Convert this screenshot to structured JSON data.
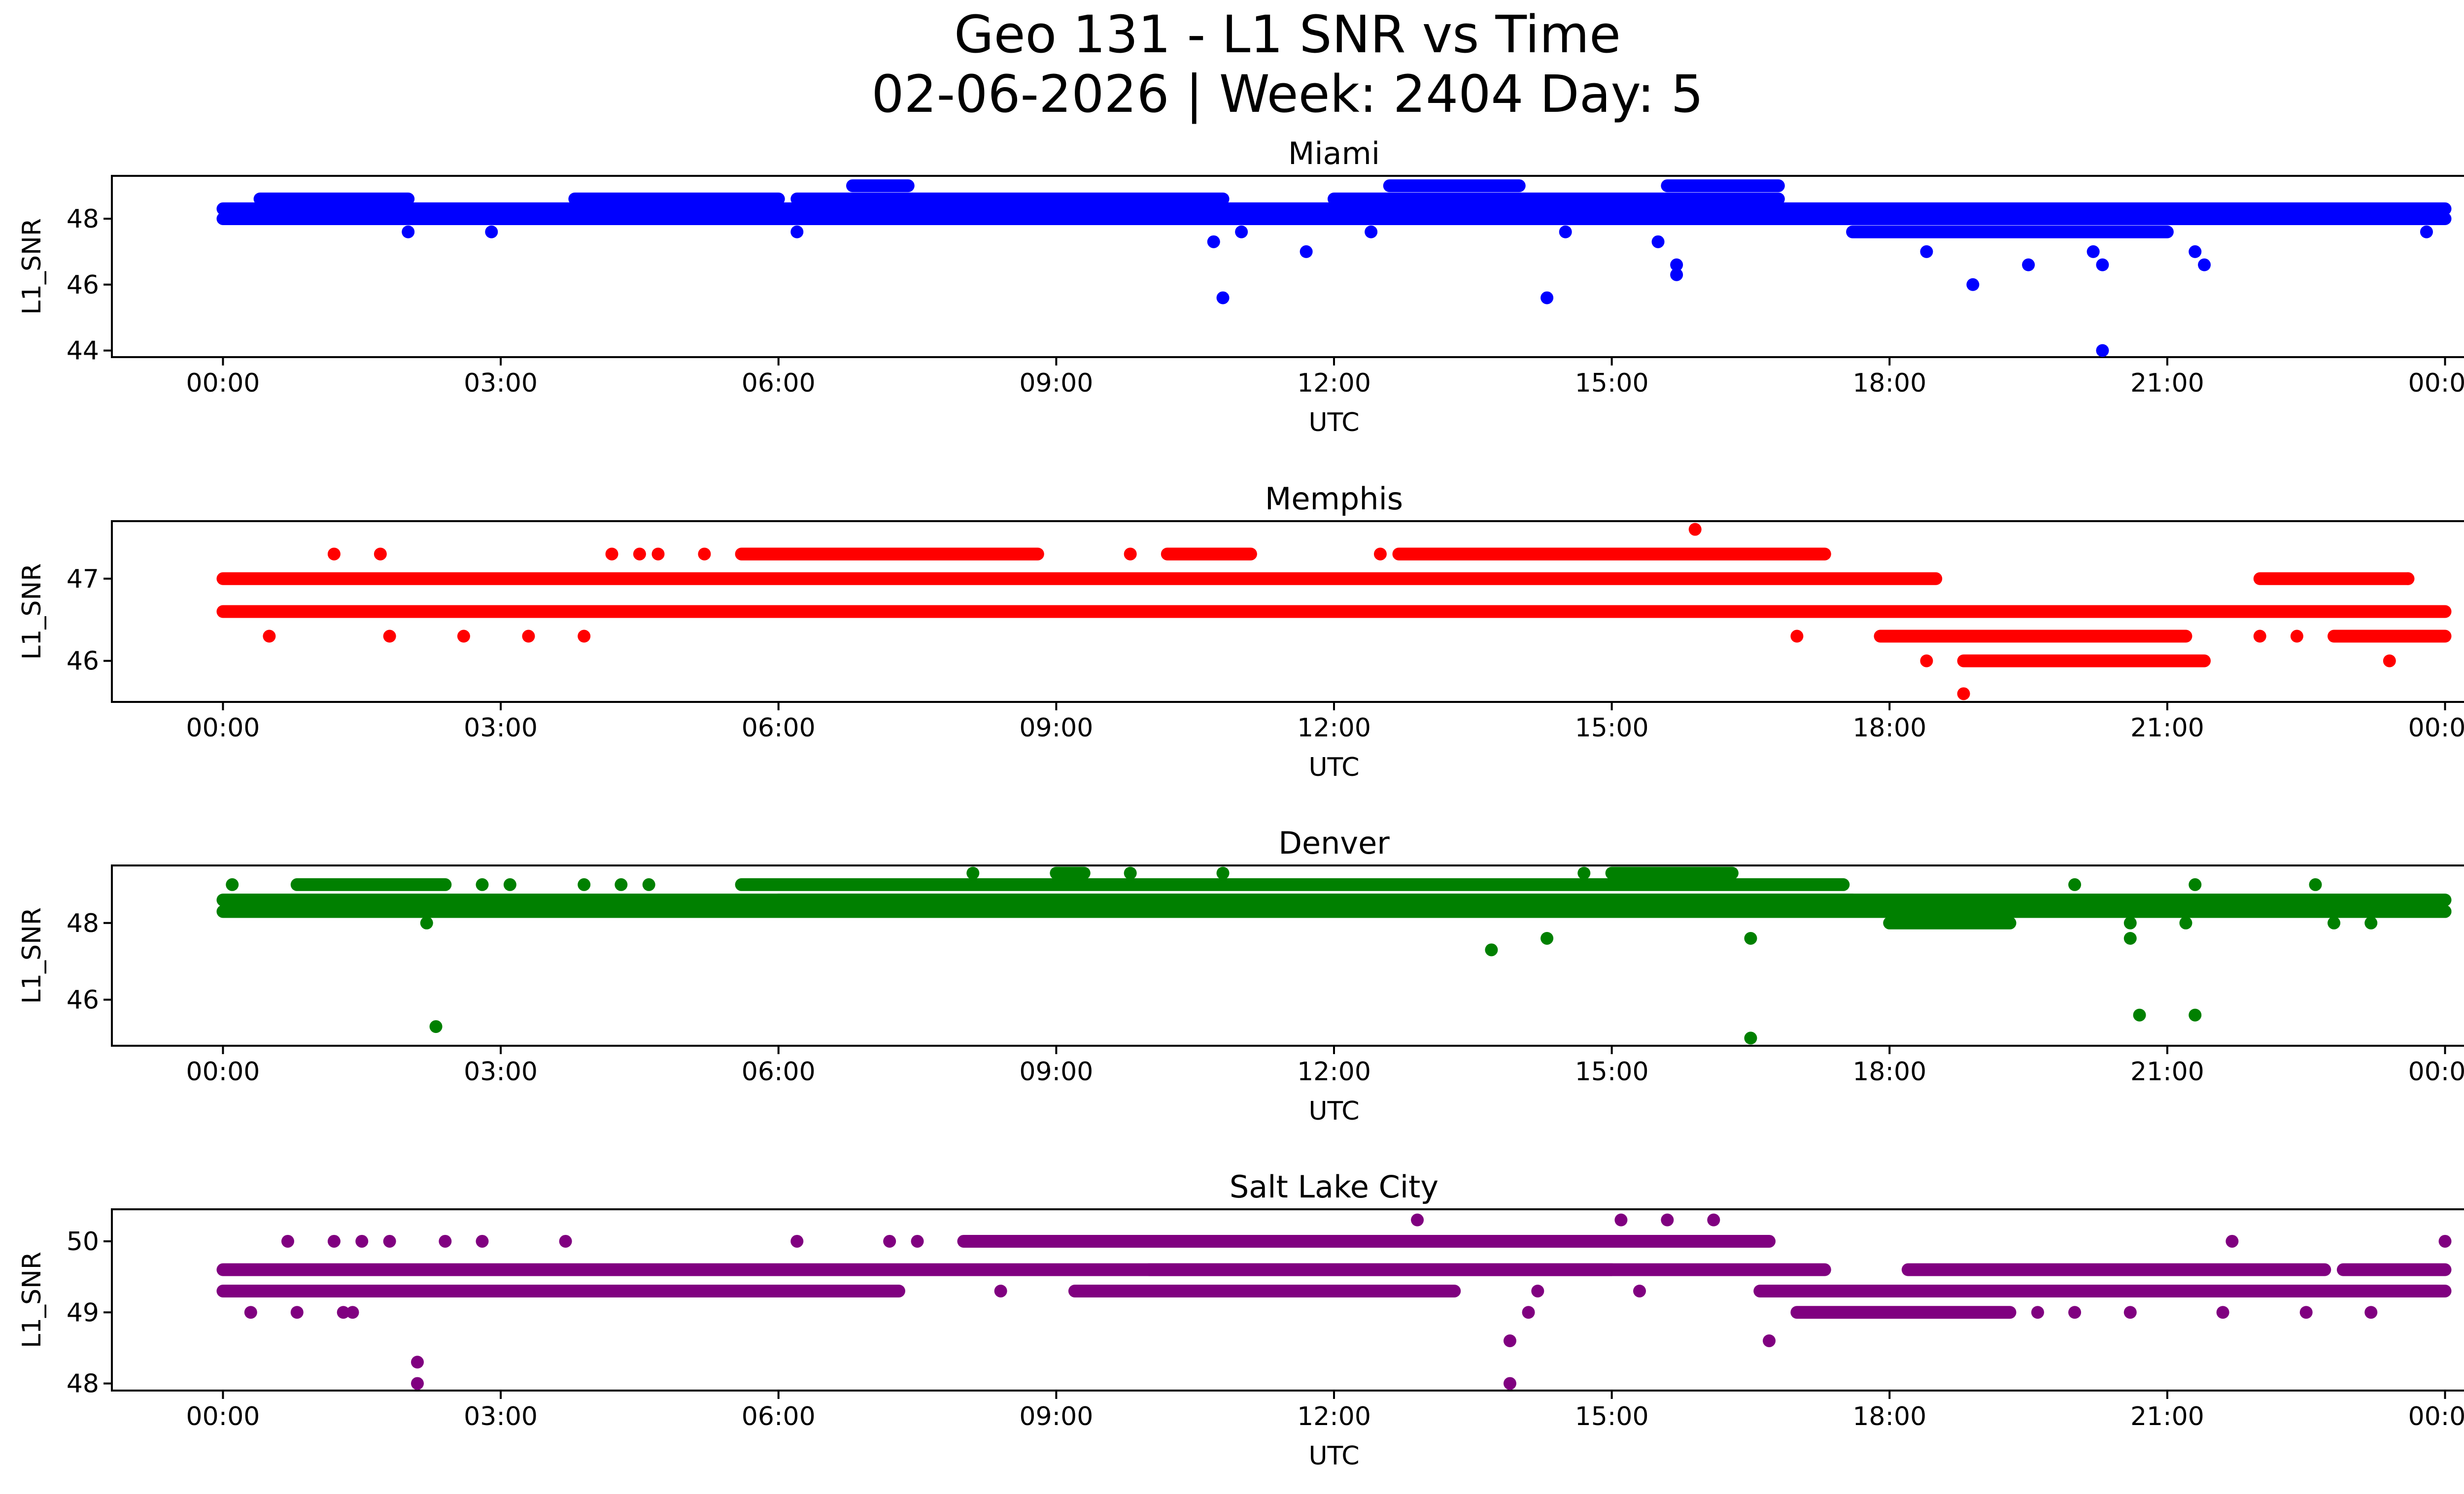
{
  "figure": {
    "title_line1": "Geo 131 - L1 SNR vs Time",
    "title_line2": "02-06-2026 | Week: 2404 Day: 5"
  },
  "chart_data": [
    {
      "type": "scatter",
      "title": "Miami",
      "xlabel": "UTC",
      "ylabel": "L1_SNR",
      "color": "#0000ff",
      "xlim_hours": [
        -1.2,
        25.2
      ],
      "ylim": [
        43.8,
        49.3
      ],
      "yticks": [
        44,
        46,
        48
      ],
      "baseline_levels": [
        {
          "x": [
            0,
            24
          ],
          "y": [
            48.0,
            48.3
          ]
        },
        {
          "x": [
            0.4,
            2.0
          ],
          "y": [
            48.6
          ]
        },
        {
          "x": [
            3.8,
            6.0
          ],
          "y": [
            48.6
          ]
        },
        {
          "x": [
            6.2,
            10.8
          ],
          "y": [
            48.6
          ]
        },
        {
          "x": [
            12.0,
            16.8
          ],
          "y": [
            48.6
          ]
        },
        {
          "x": [
            6.8,
            7.4
          ],
          "y": [
            49.0
          ]
        },
        {
          "x": [
            12.6,
            14.0
          ],
          "y": [
            49.0
          ]
        },
        {
          "x": [
            15.6,
            16.8
          ],
          "y": [
            49.0
          ]
        },
        {
          "x": [
            17.6,
            21.0
          ],
          "y": [
            47.6
          ]
        },
        {
          "x": [
            18.0,
            21.2
          ],
          "y": [
            48.0
          ]
        }
      ],
      "outliers": [
        [
          2.0,
          47.6
        ],
        [
          2.9,
          47.6
        ],
        [
          6.2,
          47.6
        ],
        [
          10.7,
          47.3
        ],
        [
          10.8,
          45.6
        ],
        [
          11.0,
          47.6
        ],
        [
          11.7,
          47.0
        ],
        [
          12.4,
          47.6
        ],
        [
          14.3,
          45.6
        ],
        [
          14.5,
          47.6
        ],
        [
          15.5,
          47.3
        ],
        [
          15.7,
          46.6
        ],
        [
          15.7,
          46.3
        ],
        [
          18.4,
          47.0
        ],
        [
          18.9,
          46.0
        ],
        [
          19.5,
          46.6
        ],
        [
          20.2,
          47.0
        ],
        [
          20.3,
          46.6
        ],
        [
          20.3,
          44.0
        ],
        [
          21.3,
          47.0
        ],
        [
          21.4,
          46.6
        ],
        [
          23.8,
          47.6
        ]
      ]
    },
    {
      "type": "scatter",
      "title": "Memphis",
      "xlabel": "UTC",
      "ylabel": "L1_SNR",
      "color": "#ff0000",
      "xlim_hours": [
        -1.2,
        25.2
      ],
      "ylim": [
        45.5,
        47.7
      ],
      "yticks": [
        46,
        47
      ],
      "baseline_levels": [
        {
          "x": [
            0,
            18.5
          ],
          "y": [
            47.0
          ]
        },
        {
          "x": [
            0,
            17.0
          ],
          "y": [
            46.6
          ]
        },
        {
          "x": [
            5.6,
            8.8
          ],
          "y": [
            47.3
          ]
        },
        {
          "x": [
            10.2,
            11.1
          ],
          "y": [
            47.3
          ]
        },
        {
          "x": [
            12.7,
            17.3
          ],
          "y": [
            47.3
          ]
        },
        {
          "x": [
            17.0,
            24
          ],
          "y": [
            46.6
          ]
        },
        {
          "x": [
            17.9,
            21.2
          ],
          "y": [
            46.3
          ]
        },
        {
          "x": [
            18.8,
            21.4
          ],
          "y": [
            46.0
          ]
        },
        {
          "x": [
            22.0,
            23.6
          ],
          "y": [
            47.0
          ]
        },
        {
          "x": [
            22.8,
            24
          ],
          "y": [
            46.3
          ]
        }
      ],
      "outliers": [
        [
          0.5,
          46.3
        ],
        [
          1.2,
          47.3
        ],
        [
          1.7,
          47.3
        ],
        [
          1.8,
          46.3
        ],
        [
          2.6,
          46.3
        ],
        [
          3.3,
          46.3
        ],
        [
          3.9,
          46.3
        ],
        [
          4.2,
          47.3
        ],
        [
          4.5,
          47.3
        ],
        [
          4.7,
          47.3
        ],
        [
          5.2,
          47.3
        ],
        [
          7.3,
          46.6
        ],
        [
          9.8,
          47.3
        ],
        [
          10.7,
          46.6
        ],
        [
          12.5,
          47.3
        ],
        [
          13.8,
          46.6
        ],
        [
          15.3,
          46.6
        ],
        [
          15.9,
          47.6
        ],
        [
          17.0,
          46.3
        ],
        [
          18.4,
          46.0
        ],
        [
          18.8,
          45.6
        ],
        [
          22.0,
          46.3
        ],
        [
          22.4,
          46.3
        ],
        [
          23.4,
          46.0
        ],
        [
          23.6,
          47.0
        ]
      ]
    },
    {
      "type": "scatter",
      "title": "Denver",
      "xlabel": "UTC",
      "ylabel": "L1_SNR",
      "color": "#008000",
      "xlim_hours": [
        -1.2,
        25.2
      ],
      "ylim": [
        44.8,
        49.5
      ],
      "yticks": [
        46,
        48
      ],
      "baseline_levels": [
        {
          "x": [
            0,
            24
          ],
          "y": [
            48.3,
            48.6
          ]
        },
        {
          "x": [
            0.8,
            2.4
          ],
          "y": [
            49.0
          ]
        },
        {
          "x": [
            5.6,
            17.5
          ],
          "y": [
            49.0
          ]
        },
        {
          "x": [
            6.0,
            17.6
          ],
          "y": [
            48.6
          ]
        },
        {
          "x": [
            9.0,
            9.3
          ],
          "y": [
            49.3
          ]
        },
        {
          "x": [
            15.0,
            16.3
          ],
          "y": [
            49.3
          ]
        },
        {
          "x": [
            17.6,
            24
          ],
          "y": [
            48.3
          ]
        },
        {
          "x": [
            18.0,
            19.3
          ],
          "y": [
            48.0
          ]
        }
      ],
      "outliers": [
        [
          0.1,
          49.0
        ],
        [
          2.2,
          48.0
        ],
        [
          2.3,
          45.3
        ],
        [
          2.8,
          49.0
        ],
        [
          3.1,
          49.0
        ],
        [
          3.9,
          49.0
        ],
        [
          4.3,
          49.0
        ],
        [
          4.6,
          49.0
        ],
        [
          8.1,
          49.3
        ],
        [
          9.8,
          49.3
        ],
        [
          10.8,
          49.3
        ],
        [
          13.7,
          47.3
        ],
        [
          14.3,
          47.6
        ],
        [
          14.7,
          49.3
        ],
        [
          16.5,
          47.6
        ],
        [
          16.5,
          45.0
        ],
        [
          20.0,
          49.0
        ],
        [
          20.6,
          47.6
        ],
        [
          20.6,
          48.0
        ],
        [
          20.7,
          45.6
        ],
        [
          21.2,
          48.0
        ],
        [
          21.3,
          45.6
        ],
        [
          21.3,
          49.0
        ],
        [
          22.6,
          49.0
        ],
        [
          22.8,
          48.0
        ],
        [
          23.2,
          48.0
        ]
      ]
    },
    {
      "type": "scatter",
      "title": "Salt Lake City",
      "xlabel": "UTC",
      "ylabel": "L1_SNR",
      "color": "#800080",
      "xlim_hours": [
        -1.2,
        25.2
      ],
      "ylim": [
        47.9,
        50.45
      ],
      "yticks": [
        48,
        49,
        50
      ],
      "baseline_levels": [
        {
          "x": [
            0,
            17.3
          ],
          "y": [
            49.6
          ]
        },
        {
          "x": [
            0,
            7.3
          ],
          "y": [
            49.3
          ]
        },
        {
          "x": [
            8.0,
            16.7
          ],
          "y": [
            50.0
          ]
        },
        {
          "x": [
            9.2,
            13.3
          ],
          "y": [
            49.3
          ]
        },
        {
          "x": [
            10.0,
            15.0
          ],
          "y": [
            49.6
          ]
        },
        {
          "x": [
            16.6,
            24
          ],
          "y": [
            49.3
          ]
        },
        {
          "x": [
            17.0,
            19.3
          ],
          "y": [
            49.0
          ]
        },
        {
          "x": [
            18.2,
            22.7
          ],
          "y": [
            49.6
          ]
        },
        {
          "x": [
            22.9,
            24
          ],
          "y": [
            49.6
          ]
        }
      ],
      "outliers": [
        [
          0.3,
          49.0
        ],
        [
          0.7,
          50.0
        ],
        [
          0.8,
          49.0
        ],
        [
          1.2,
          50.0
        ],
        [
          1.3,
          49.0
        ],
        [
          1.4,
          49.0
        ],
        [
          1.5,
          50.0
        ],
        [
          1.8,
          50.0
        ],
        [
          2.1,
          48.3
        ],
        [
          2.1,
          48.0
        ],
        [
          2.4,
          50.0
        ],
        [
          2.8,
          50.0
        ],
        [
          3.7,
          50.0
        ],
        [
          6.2,
          50.0
        ],
        [
          7.2,
          50.0
        ],
        [
          7.5,
          50.0
        ],
        [
          8.4,
          49.3
        ],
        [
          12.9,
          50.3
        ],
        [
          13.1,
          49.3
        ],
        [
          13.9,
          48.6
        ],
        [
          13.9,
          48.0
        ],
        [
          14.1,
          49.0
        ],
        [
          14.2,
          49.3
        ],
        [
          15.1,
          50.3
        ],
        [
          15.3,
          49.3
        ],
        [
          15.6,
          50.3
        ],
        [
          16.1,
          50.3
        ],
        [
          16.7,
          48.6
        ],
        [
          19.6,
          49.0
        ],
        [
          20.0,
          49.0
        ],
        [
          20.6,
          49.0
        ],
        [
          21.6,
          49.0
        ],
        [
          21.7,
          50.0
        ],
        [
          22.5,
          49.0
        ],
        [
          23.2,
          49.0
        ],
        [
          24.0,
          50.0
        ]
      ]
    }
  ],
  "xticks": [
    "00:00",
    "03:00",
    "06:00",
    "09:00",
    "12:00",
    "15:00",
    "18:00",
    "21:00",
    "00:00"
  ]
}
